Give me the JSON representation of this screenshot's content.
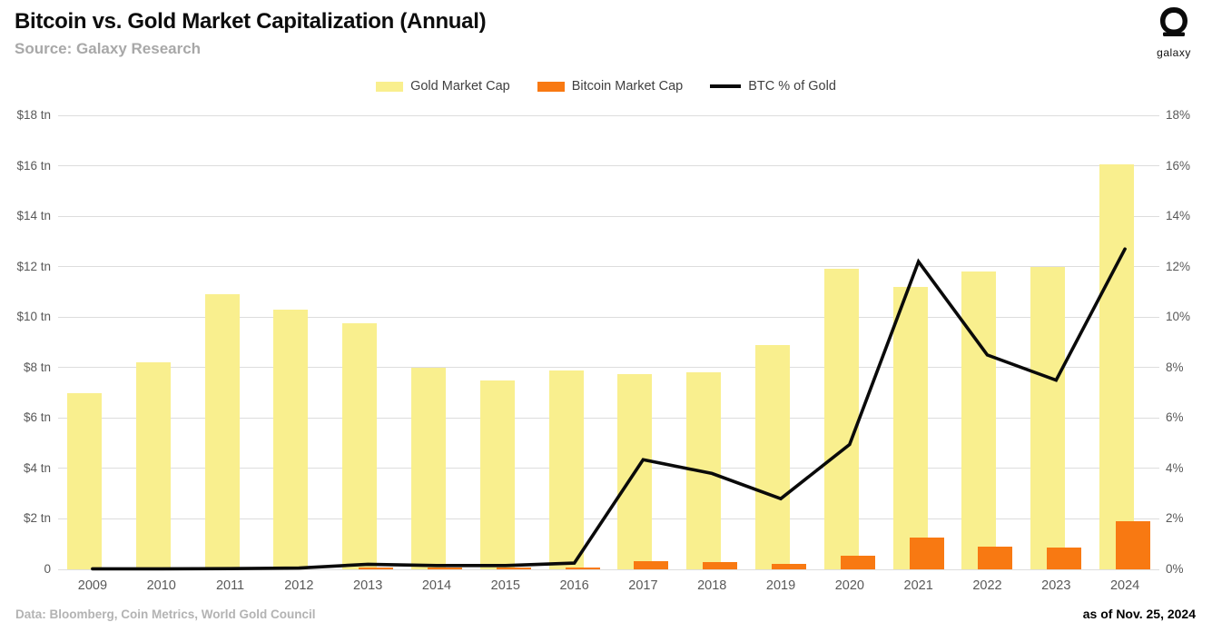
{
  "header": {
    "title": "Bitcoin vs. Gold Market Capitalization (Annual)",
    "subtitle": "Source: Galaxy Research",
    "logo_text": "galaxy"
  },
  "colors": {
    "gold_bar": "#f9ef8e",
    "bitcoin_bar": "#f87912",
    "line": "#0a0a0a",
    "gridline": "#dddddd",
    "axis_text": "#595959"
  },
  "chart_data": {
    "type": "combo",
    "categories": [
      "2009",
      "2010",
      "2011",
      "2012",
      "2013",
      "2014",
      "2015",
      "2016",
      "2017",
      "2018",
      "2019",
      "2020",
      "2021",
      "2022",
      "2023",
      "2024"
    ],
    "series": [
      {
        "name": "Gold Market Cap",
        "type": "bar",
        "axis": "left",
        "color": "#f9ef8e",
        "values": [
          7.0,
          8.2,
          10.9,
          10.3,
          9.75,
          8.0,
          7.5,
          7.9,
          7.75,
          7.8,
          8.9,
          11.9,
          11.2,
          11.8,
          12.0,
          16.05
        ]
      },
      {
        "name": "Bitcoin Market Cap",
        "type": "bar",
        "axis": "left",
        "color": "#f87912",
        "values": [
          0,
          0,
          0,
          0,
          0.01,
          0.005,
          0.01,
          0.015,
          0.32,
          0.29,
          0.22,
          0.55,
          1.25,
          0.9,
          0.85,
          1.92
        ]
      },
      {
        "name": "BTC % of Gold",
        "type": "line",
        "axis": "right",
        "color": "#0a0a0a",
        "values": [
          0.02,
          0.02,
          0.03,
          0.05,
          0.2,
          0.15,
          0.15,
          0.25,
          4.35,
          3.8,
          2.8,
          4.95,
          12.2,
          8.5,
          7.5,
          12.7
        ]
      }
    ],
    "left_axis": {
      "label": "USD trillions",
      "min": 0,
      "max": 18,
      "ticks": [
        "$18 tn",
        "$16 tn",
        "$14 tn",
        "$12 tn",
        "$10 tn",
        "$8 tn",
        "$6 tn",
        "$4 tn",
        "$2 tn",
        "0"
      ]
    },
    "right_axis": {
      "label": "BTC % of Gold",
      "min": 0,
      "max": 18,
      "ticks": [
        "18%",
        "16%",
        "14%",
        "12%",
        "10%",
        "8%",
        "6%",
        "4%",
        "2%",
        "0%"
      ]
    },
    "grid": true,
    "legend_position": "top-center"
  },
  "footer": {
    "source_note": "Data: Bloomberg, Coin Metrics, World Gold Council",
    "as_of": "as of Nov. 25, 2024"
  }
}
